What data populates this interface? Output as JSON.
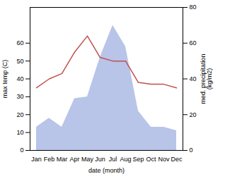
{
  "chart_data": {
    "type": "line",
    "categories": [
      "Jan",
      "Feb",
      "Mar",
      "Apr",
      "May",
      "Jun",
      "Jul",
      "Aug",
      "Sep",
      "Oct",
      "Nov",
      "Dec"
    ],
    "series": [
      {
        "type": "area",
        "axis": "y2",
        "color": "#b8c4e8",
        "values": [
          13,
          18,
          13,
          29,
          30,
          52,
          70,
          58,
          22,
          13,
          13,
          11
        ]
      },
      {
        "type": "line",
        "color": "#c0504d",
        "values": [
          35,
          40,
          43,
          55,
          64,
          52,
          50,
          50,
          38,
          37,
          37,
          35
        ]
      }
    ],
    "xlabel": "date (month)",
    "ylabel": "max temp (C)",
    "y2label": "med. precipitation\n(kg/m2)",
    "ylim": [
      0,
      80
    ],
    "yticks": [
      0,
      10,
      20,
      30,
      40,
      50,
      60
    ],
    "y2lim": [
      0,
      80
    ],
    "y2ticks": [
      0,
      20,
      40,
      60,
      80
    ],
    "grid": false
  }
}
